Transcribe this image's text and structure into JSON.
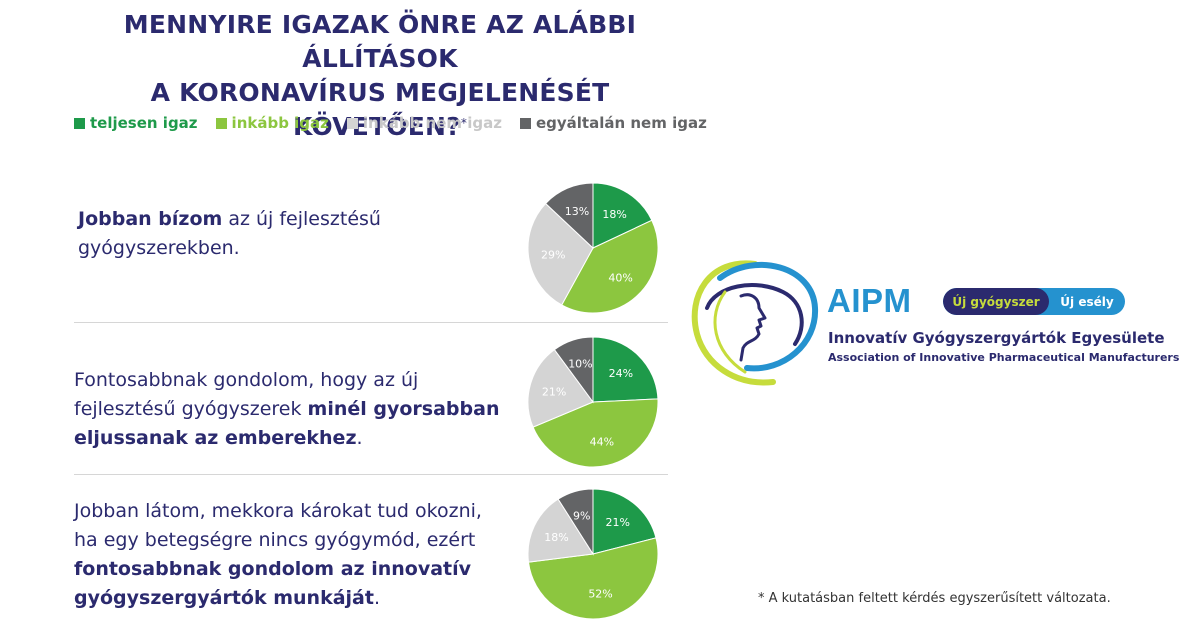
{
  "title_line1": "MENNYIRE IGAZAK ÖNRE AZ ALÁBBI ÁLLÍTÁSOK",
  "title_line2": "A KORONAVÍRUS MEGJELENÉSÉT KÖVETŐEN?",
  "title_mark": "*",
  "colors": {
    "teljesen_igaz": "#1e9a4a",
    "inkabb_igaz": "#8cc63f",
    "inkabb_nem_igaz": "#d4d4d4",
    "egyaltalan_nem_igaz": "#636466",
    "navy": "#2b2a6e",
    "blue": "#2592cf"
  },
  "legend": [
    {
      "label": "teljesen igaz",
      "color": "#1e9a4a"
    },
    {
      "label": "inkább igaz",
      "color": "#8cc63f"
    },
    {
      "label": "inkább nem igaz",
      "color": "#d4d4d4"
    },
    {
      "label": "egyáltalán nem igaz",
      "color": "#636466"
    }
  ],
  "statements": [
    {
      "parts": [
        "",
        "Jobban bízom",
        " az új fejlesztésű gyógyszerekben."
      ]
    },
    {
      "parts": [
        "Fontosabbnak gondolom, hogy az új fejlesztésű gyógyszerek ",
        "minél gyorsabban eljussanak az emberekhez",
        "."
      ]
    },
    {
      "parts": [
        "Jobban látom, mekkora károkat tud okozni, ha egy betegségre nincs gyógymód, ezért ",
        "fontosabbnak gondolom az innovatív gyógyszergyártók munkáját",
        "."
      ]
    }
  ],
  "chart_data": [
    {
      "type": "pie",
      "categories": [
        "teljesen igaz",
        "inkább igaz",
        "inkább nem igaz",
        "egyáltalán nem igaz"
      ],
      "values": [
        18,
        40,
        29,
        13
      ],
      "labels": [
        "18%",
        "40%",
        "29%",
        "13%"
      ]
    },
    {
      "type": "pie",
      "categories": [
        "teljesen igaz",
        "inkább igaz",
        "inkább nem igaz",
        "egyáltalán nem igaz"
      ],
      "values": [
        24,
        44,
        21,
        10
      ],
      "labels": [
        "24%",
        "44%",
        "21%",
        "10%"
      ]
    },
    {
      "type": "pie",
      "categories": [
        "teljesen igaz",
        "inkább igaz",
        "inkább nem igaz",
        "egyáltalán nem igaz"
      ],
      "values": [
        21,
        52,
        18,
        9
      ],
      "labels": [
        "21%",
        "52%",
        "18%",
        "9%"
      ]
    }
  ],
  "logo": {
    "name": "AIPM",
    "pill_left": "Új gyógyszer",
    "pill_right": "Új esély",
    "org_hu": "Innovatív Gyógyszergyártók Egyesülete",
    "org_en": "Association of Innovative Pharmaceutical Manufacturers",
    "icon": "face-profile-orbit-logo"
  },
  "footnote": "* A kutatásban feltett kérdés egyszerűsített változata."
}
